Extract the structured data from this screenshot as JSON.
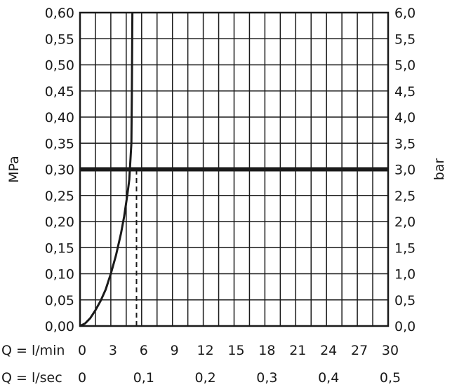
{
  "chart_data": {
    "type": "line",
    "title": "",
    "ylabel_left": "MPa",
    "ylabel_right": "bar",
    "x_rows": [
      {
        "label": "Q = l/min",
        "ticks": [
          "0",
          "3",
          "6",
          "9",
          "12",
          "15",
          "18",
          "21",
          "24",
          "27",
          "30"
        ],
        "values": [
          0,
          3,
          6,
          9,
          12,
          15,
          18,
          21,
          24,
          27,
          30
        ]
      },
      {
        "label": "Q = l/sec",
        "ticks": [
          "0",
          "0,1",
          "0,2",
          "0,3",
          "0,4",
          "0,5"
        ],
        "values": [
          0,
          6,
          12,
          18,
          24,
          30
        ]
      }
    ],
    "xlim": [
      0,
      30
    ],
    "ylim": [
      0,
      0.6
    ],
    "y_ticks_left": [
      "0,00",
      "0,05",
      "0,10",
      "0,15",
      "0,20",
      "0,25",
      "0,30",
      "0,35",
      "0,40",
      "0,45",
      "0,50",
      "0,55",
      "0,60"
    ],
    "y_ticks_right": [
      "0,0",
      "0,5",
      "1,0",
      "1,5",
      "2,0",
      "2,5",
      "3,0",
      "3,5",
      "4,0",
      "4,5",
      "5,0",
      "5,5",
      "6,0"
    ],
    "y_tick_values": [
      0,
      0.05,
      0.1,
      0.15,
      0.2,
      0.25,
      0.3,
      0.35,
      0.4,
      0.45,
      0.5,
      0.55,
      0.6
    ],
    "grid": true,
    "series": [
      {
        "x": [
          0,
          0.5,
          1,
          1.5,
          2,
          2.5,
          3,
          3.5,
          4,
          4.3,
          4.6,
          4.8,
          5.0,
          5.05,
          5.1
        ],
        "y": [
          0,
          0.005,
          0.015,
          0.03,
          0.048,
          0.07,
          0.1,
          0.135,
          0.178,
          0.21,
          0.25,
          0.28,
          0.35,
          0.45,
          0.6
        ]
      }
    ],
    "reference_line": {
      "y": 0.3
    },
    "guide_line": {
      "x": 5.5,
      "y_from": 0,
      "y_to": 0.3
    }
  }
}
